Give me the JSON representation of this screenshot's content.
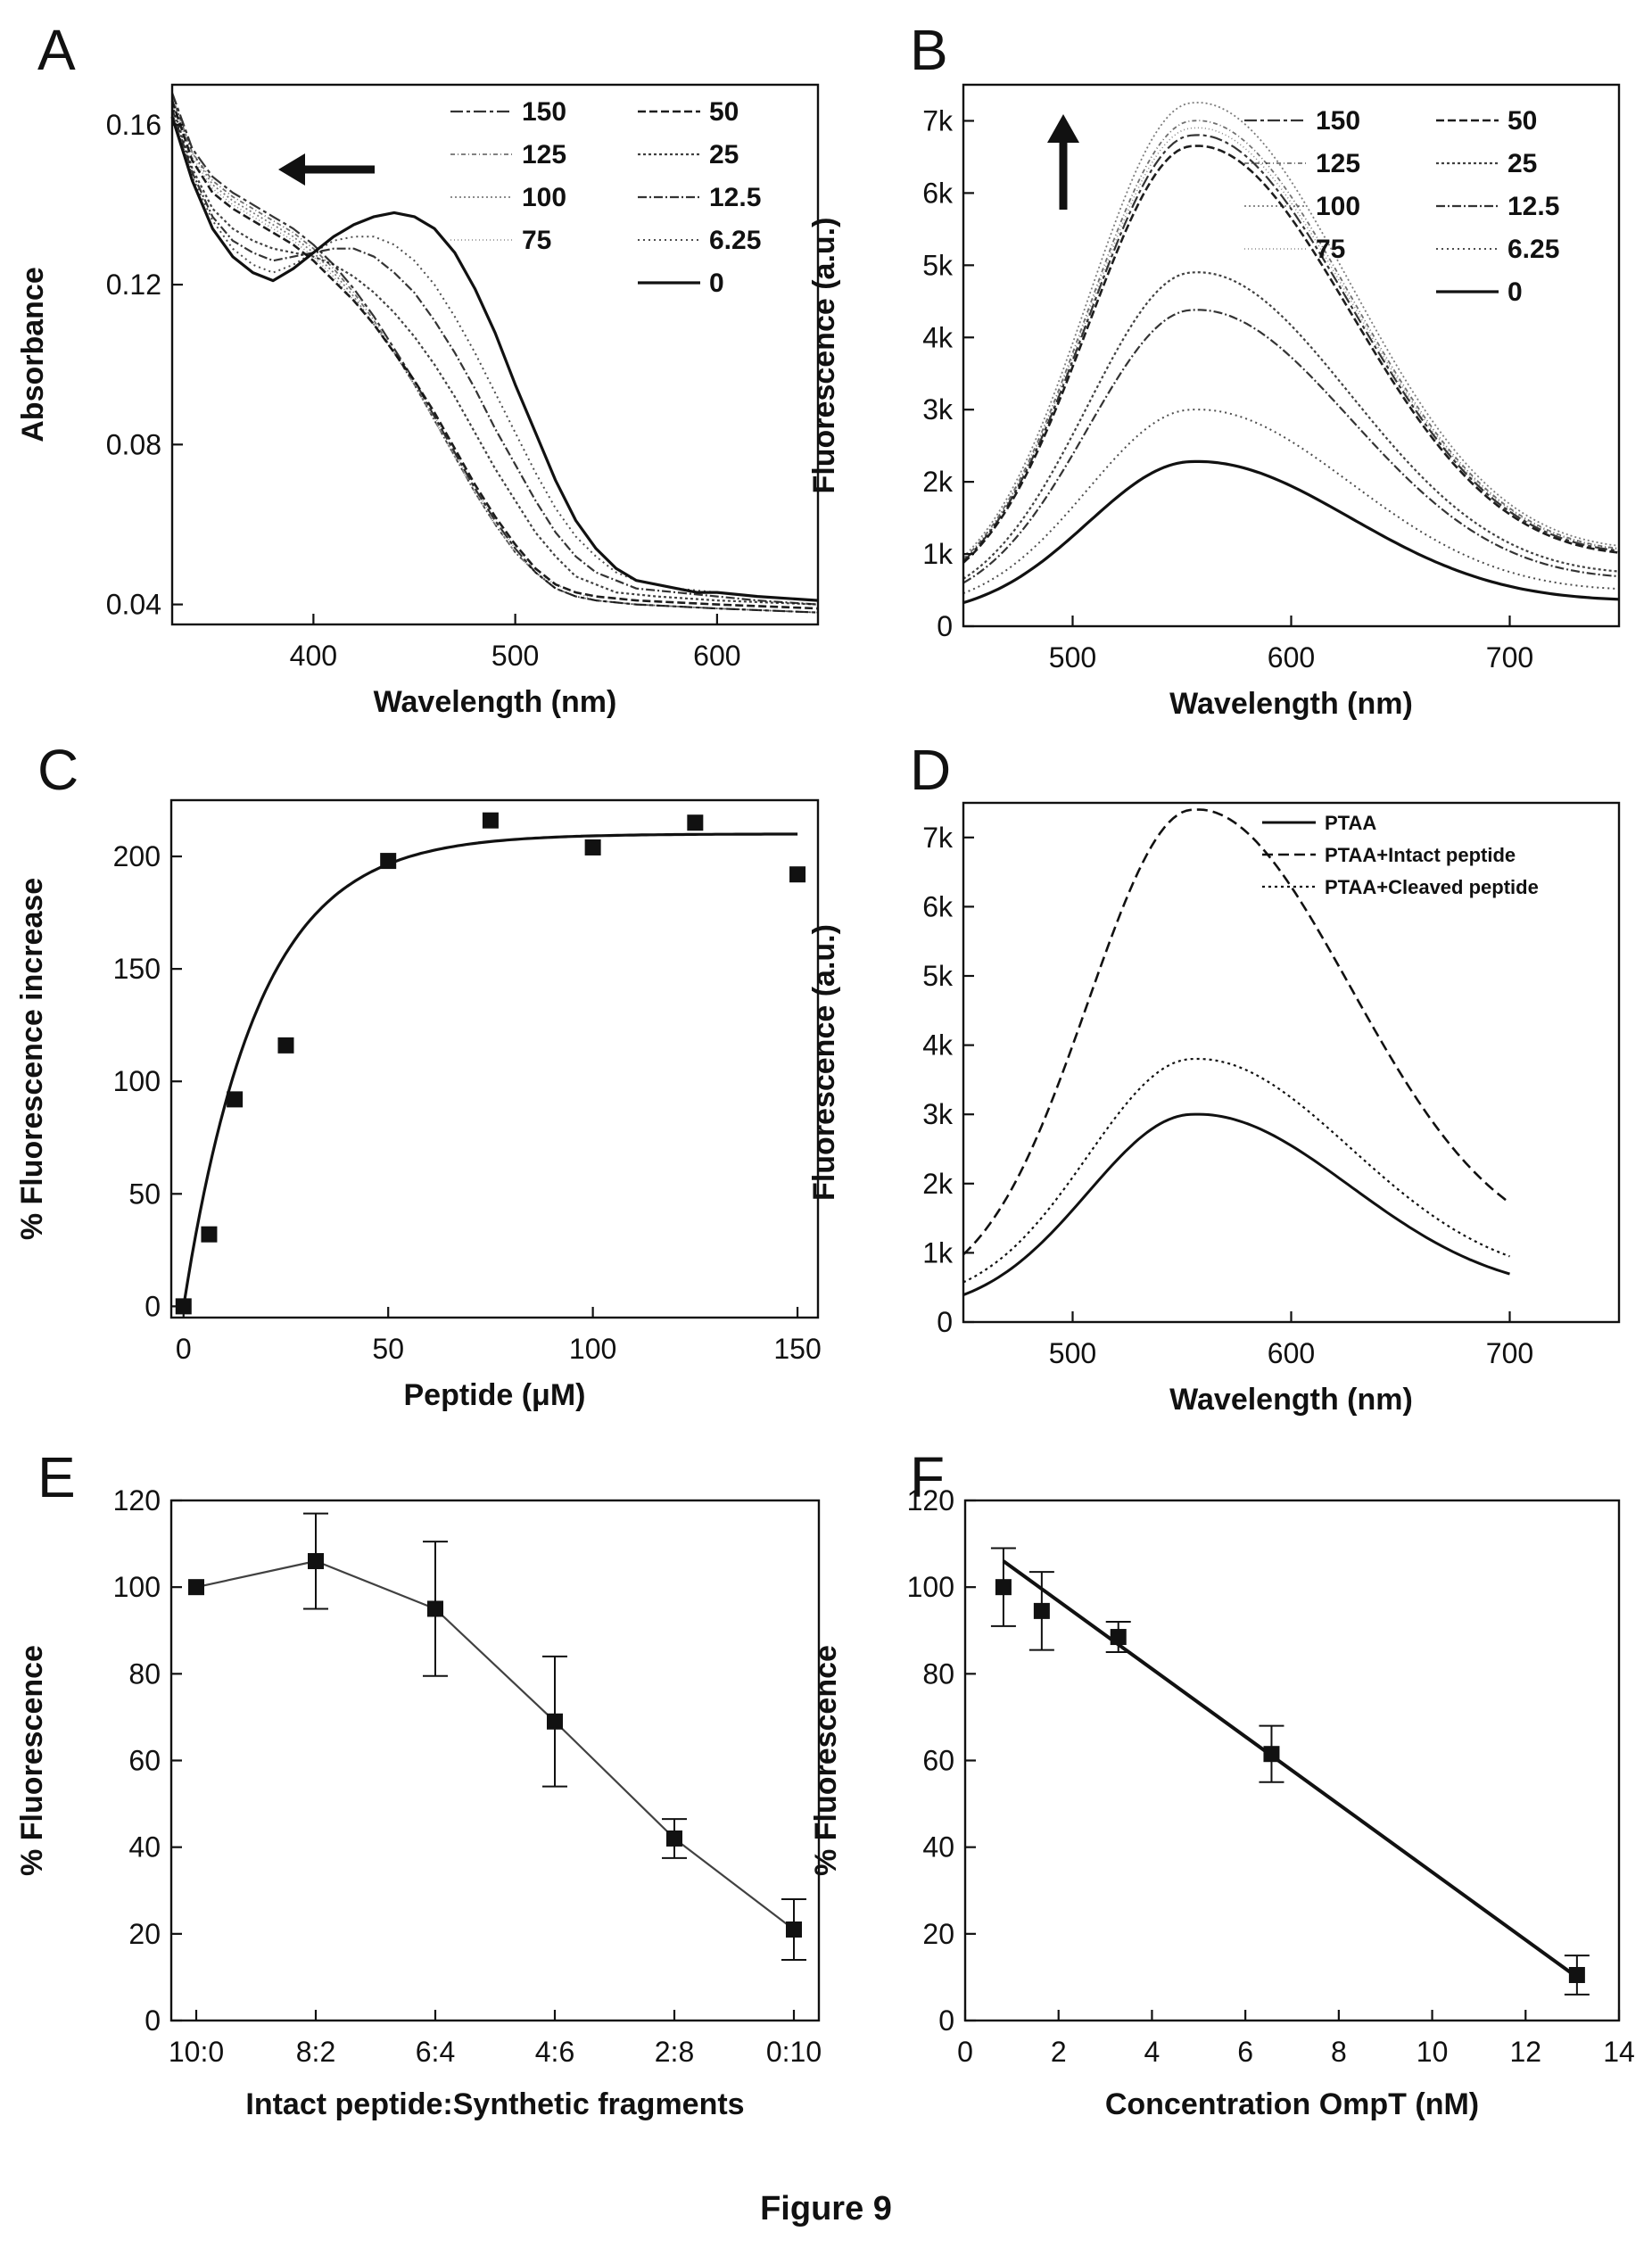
{
  "figure": {
    "caption": "Figure 9",
    "line_color": "#111111"
  },
  "chart_data": [
    {
      "id": "A",
      "panel_label": "A",
      "type": "line",
      "xlabel": "Wavelength (nm)",
      "ylabel": "Absorbance",
      "xlim": [
        330,
        650
      ],
      "ylim": [
        0.035,
        0.17
      ],
      "xticks": [
        400,
        500,
        600
      ],
      "xtick_labels": [
        "400",
        "500",
        "600"
      ],
      "yticks": [
        0.04,
        0.08,
        0.12,
        0.16
      ],
      "ytick_labels": [
        "0.04",
        "0.08",
        "0.12",
        "0.16"
      ],
      "arrow": "left",
      "legend_columns": [
        [
          "150",
          "125",
          "100",
          "75"
        ],
        [
          "50",
          "25",
          "12.5",
          "6.25",
          "0"
        ]
      ],
      "series": [
        {
          "name": "0",
          "x": [
            330,
            340,
            350,
            360,
            370,
            380,
            390,
            400,
            410,
            420,
            430,
            440,
            450,
            460,
            470,
            480,
            490,
            500,
            510,
            520,
            530,
            540,
            550,
            560,
            570,
            580,
            590,
            600,
            620,
            650
          ],
          "y": [
            0.162,
            0.146,
            0.134,
            0.127,
            0.123,
            0.121,
            0.124,
            0.128,
            0.132,
            0.135,
            0.137,
            0.138,
            0.137,
            0.134,
            0.128,
            0.119,
            0.108,
            0.095,
            0.083,
            0.071,
            0.061,
            0.054,
            0.049,
            0.046,
            0.045,
            0.044,
            0.043,
            0.043,
            0.042,
            0.041
          ]
        },
        {
          "name": "6.25",
          "x": [
            330,
            340,
            350,
            360,
            370,
            380,
            390,
            400,
            410,
            420,
            430,
            440,
            450,
            460,
            470,
            480,
            490,
            500,
            510,
            520,
            530,
            540,
            550,
            560,
            570,
            580,
            600,
            620,
            650
          ],
          "y": [
            0.163,
            0.147,
            0.136,
            0.129,
            0.125,
            0.123,
            0.125,
            0.128,
            0.131,
            0.132,
            0.132,
            0.13,
            0.126,
            0.12,
            0.112,
            0.103,
            0.093,
            0.083,
            0.073,
            0.064,
            0.057,
            0.052,
            0.048,
            0.046,
            0.045,
            0.044,
            0.043,
            0.042,
            0.041
          ]
        },
        {
          "name": "12.5",
          "x": [
            330,
            340,
            350,
            360,
            370,
            380,
            390,
            400,
            410,
            420,
            430,
            440,
            450,
            460,
            470,
            480,
            490,
            500,
            510,
            520,
            530,
            540,
            550,
            560,
            580,
            600,
            620,
            650
          ],
          "y": [
            0.164,
            0.148,
            0.137,
            0.131,
            0.128,
            0.126,
            0.127,
            0.128,
            0.129,
            0.129,
            0.127,
            0.123,
            0.118,
            0.111,
            0.103,
            0.094,
            0.084,
            0.075,
            0.066,
            0.058,
            0.052,
            0.048,
            0.046,
            0.044,
            0.043,
            0.042,
            0.041,
            0.04
          ]
        },
        {
          "name": "25",
          "x": [
            330,
            340,
            350,
            360,
            370,
            380,
            390,
            400,
            410,
            420,
            430,
            440,
            450,
            460,
            470,
            480,
            490,
            500,
            510,
            520,
            530,
            540,
            550,
            570,
            600,
            650
          ],
          "y": [
            0.165,
            0.149,
            0.139,
            0.134,
            0.131,
            0.129,
            0.128,
            0.127,
            0.125,
            0.122,
            0.118,
            0.113,
            0.107,
            0.1,
            0.092,
            0.083,
            0.074,
            0.066,
            0.058,
            0.052,
            0.047,
            0.045,
            0.043,
            0.042,
            0.041,
            0.04
          ]
        },
        {
          "name": "50",
          "x": [
            330,
            340,
            350,
            360,
            370,
            380,
            390,
            400,
            410,
            420,
            430,
            440,
            450,
            460,
            470,
            480,
            490,
            500,
            510,
            520,
            530,
            540,
            560,
            600,
            650
          ],
          "y": [
            0.166,
            0.151,
            0.143,
            0.139,
            0.136,
            0.133,
            0.13,
            0.126,
            0.121,
            0.116,
            0.11,
            0.103,
            0.096,
            0.088,
            0.079,
            0.07,
            0.062,
            0.055,
            0.049,
            0.045,
            0.043,
            0.042,
            0.041,
            0.04,
            0.039
          ]
        },
        {
          "name": "75",
          "x": [
            330,
            340,
            350,
            360,
            370,
            380,
            390,
            400,
            410,
            420,
            430,
            440,
            450,
            460,
            470,
            480,
            490,
            500,
            510,
            520,
            530,
            540,
            560,
            600,
            650
          ],
          "y": [
            0.166,
            0.152,
            0.144,
            0.14,
            0.137,
            0.134,
            0.131,
            0.127,
            0.122,
            0.116,
            0.11,
            0.103,
            0.095,
            0.087,
            0.078,
            0.069,
            0.061,
            0.054,
            0.048,
            0.045,
            0.043,
            0.041,
            0.04,
            0.039,
            0.038
          ]
        },
        {
          "name": "100",
          "x": [
            330,
            340,
            350,
            360,
            370,
            380,
            390,
            400,
            410,
            420,
            430,
            440,
            450,
            460,
            470,
            480,
            490,
            500,
            510,
            520,
            530,
            540,
            560,
            600,
            650
          ],
          "y": [
            0.167,
            0.153,
            0.145,
            0.141,
            0.138,
            0.135,
            0.132,
            0.128,
            0.123,
            0.117,
            0.11,
            0.103,
            0.095,
            0.086,
            0.077,
            0.068,
            0.06,
            0.053,
            0.048,
            0.044,
            0.042,
            0.041,
            0.04,
            0.039,
            0.038
          ]
        },
        {
          "name": "125",
          "x": [
            330,
            340,
            350,
            360,
            370,
            380,
            390,
            400,
            410,
            420,
            430,
            440,
            450,
            460,
            470,
            480,
            490,
            500,
            510,
            520,
            530,
            540,
            560,
            600,
            650
          ],
          "y": [
            0.167,
            0.153,
            0.146,
            0.142,
            0.139,
            0.136,
            0.133,
            0.129,
            0.124,
            0.118,
            0.111,
            0.103,
            0.095,
            0.086,
            0.077,
            0.068,
            0.06,
            0.053,
            0.048,
            0.044,
            0.042,
            0.041,
            0.04,
            0.039,
            0.038
          ]
        },
        {
          "name": "150",
          "x": [
            330,
            340,
            350,
            360,
            370,
            380,
            390,
            400,
            410,
            420,
            430,
            440,
            450,
            460,
            470,
            480,
            490,
            500,
            510,
            520,
            530,
            540,
            560,
            600,
            650
          ],
          "y": [
            0.168,
            0.154,
            0.147,
            0.143,
            0.14,
            0.137,
            0.134,
            0.13,
            0.125,
            0.119,
            0.112,
            0.104,
            0.096,
            0.087,
            0.078,
            0.069,
            0.061,
            0.054,
            0.048,
            0.044,
            0.042,
            0.041,
            0.04,
            0.039,
            0.038
          ]
        }
      ]
    },
    {
      "id": "B",
      "panel_label": "B",
      "type": "line",
      "xlabel": "Wavelength (nm)",
      "ylabel": "Fluorescence (a.u.)",
      "xlim": [
        450,
        750
      ],
      "ylim": [
        0,
        7500
      ],
      "xticks": [
        500,
        600,
        700
      ],
      "xtick_labels": [
        "500",
        "600",
        "700"
      ],
      "yticks": [
        0,
        1000,
        2000,
        3000,
        4000,
        5000,
        6000,
        7000
      ],
      "ytick_labels": [
        "0",
        "1k",
        "2k",
        "3k",
        "4k",
        "5k",
        "6k",
        "7k"
      ],
      "arrow": "up",
      "legend_columns": [
        [
          "150",
          "125",
          "100",
          "75"
        ],
        [
          "50",
          "25",
          "12.5",
          "6.25",
          "0"
        ]
      ],
      "series": [
        {
          "name": "0",
          "peak": 2280,
          "base": 130
        },
        {
          "name": "6.25",
          "peak": 3000,
          "base": 200
        },
        {
          "name": "12.5",
          "peak": 4380,
          "base": 220
        },
        {
          "name": "25",
          "peak": 4900,
          "base": 230
        },
        {
          "name": "50",
          "peak": 6650,
          "base": 300
        },
        {
          "name": "75",
          "peak": 6900,
          "base": 320
        },
        {
          "name": "100",
          "peak": 7250,
          "base": 330
        },
        {
          "name": "125",
          "peak": 7000,
          "base": 320
        },
        {
          "name": "150",
          "peak": 6800,
          "base": 310
        }
      ]
    },
    {
      "id": "C",
      "panel_label": "C",
      "type": "scatter",
      "xlabel": "Peptide (μM)",
      "ylabel": "% Fluorescence increase",
      "xlim": [
        -3,
        155
      ],
      "ylim": [
        -5,
        225
      ],
      "xticks": [
        0,
        50,
        100,
        150
      ],
      "xtick_labels": [
        "0",
        "50",
        "100",
        "150"
      ],
      "yticks": [
        0,
        50,
        100,
        150,
        200
      ],
      "ytick_labels": [
        "0",
        "50",
        "100",
        "150",
        "200"
      ],
      "series": [
        {
          "name": "",
          "x": [
            0,
            6.25,
            12.5,
            25,
            50,
            75,
            100,
            125,
            150
          ],
          "y": [
            0,
            32,
            92,
            116,
            198,
            216,
            204,
            215,
            192
          ]
        }
      ],
      "fit": {
        "plateau": 210,
        "k": 0.055,
        "x_max": 150
      }
    },
    {
      "id": "D",
      "panel_label": "D",
      "type": "line",
      "xlabel": "Wavelength (nm)",
      "ylabel": "Fluorescence (a.u.)",
      "xlim": [
        450,
        750
      ],
      "ylim": [
        0,
        7500
      ],
      "xticks": [
        500,
        600,
        700
      ],
      "xtick_labels": [
        "500",
        "600",
        "700"
      ],
      "yticks": [
        0,
        1000,
        2000,
        3000,
        4000,
        5000,
        6000,
        7000
      ],
      "ytick_labels": [
        "0",
        "1k",
        "2k",
        "3k",
        "4k",
        "5k",
        "6k",
        "7k"
      ],
      "legend": [
        "PTAA",
        "PTAA+Intact peptide",
        "PTAA+Cleaved peptide"
      ],
      "series": [
        {
          "name": "PTAA",
          "peak": 3000,
          "base": 130,
          "x_max": 700
        },
        {
          "name": "PTAA+Intact peptide",
          "peak": 7400,
          "base": 330,
          "x_max": 700
        },
        {
          "name": "PTAA+Cleaved peptide",
          "peak": 3800,
          "base": 250,
          "x_max": 700
        }
      ]
    },
    {
      "id": "E",
      "panel_label": "E",
      "type": "line",
      "xlabel": "Intact peptide:Synthetic fragments",
      "ylabel": "% Fluorescence",
      "ylim": [
        0,
        120
      ],
      "yticks": [
        0,
        20,
        40,
        60,
        80,
        100,
        120
      ],
      "ytick_labels": [
        "0",
        "20",
        "40",
        "60",
        "80",
        "100",
        "120"
      ],
      "categories": [
        "10:0",
        "8:2",
        "6:4",
        "4:6",
        "2:8",
        "0:10"
      ],
      "series": [
        {
          "name": "",
          "values": [
            100,
            106,
            95,
            69,
            42,
            21
          ],
          "errors": [
            0,
            11,
            15.5,
            15,
            4.5,
            7
          ]
        }
      ]
    },
    {
      "id": "F",
      "panel_label": "F",
      "type": "scatter",
      "xlabel": "Concentration OmpT (nM)",
      "ylabel": "% Fluorescence",
      "xlim": [
        0,
        14
      ],
      "ylim": [
        0,
        120
      ],
      "xticks": [
        0,
        2,
        4,
        6,
        8,
        10,
        12,
        14
      ],
      "xtick_labels": [
        "0",
        "2",
        "4",
        "6",
        "8",
        "10",
        "12",
        "14"
      ],
      "yticks": [
        0,
        20,
        40,
        60,
        80,
        100,
        120
      ],
      "ytick_labels": [
        "0",
        "20",
        "40",
        "60",
        "80",
        "100",
        "120"
      ],
      "series": [
        {
          "name": "",
          "x": [
            0.82,
            1.64,
            3.28,
            6.56,
            13.1
          ],
          "y": [
            100,
            94.5,
            88.5,
            61.5,
            10.5
          ],
          "errors": [
            9,
            9,
            3.5,
            6.5,
            4.5
          ]
        }
      ],
      "fit": {
        "x": [
          0.82,
          13.1
        ],
        "y": [
          106,
          10
        ]
      }
    }
  ]
}
